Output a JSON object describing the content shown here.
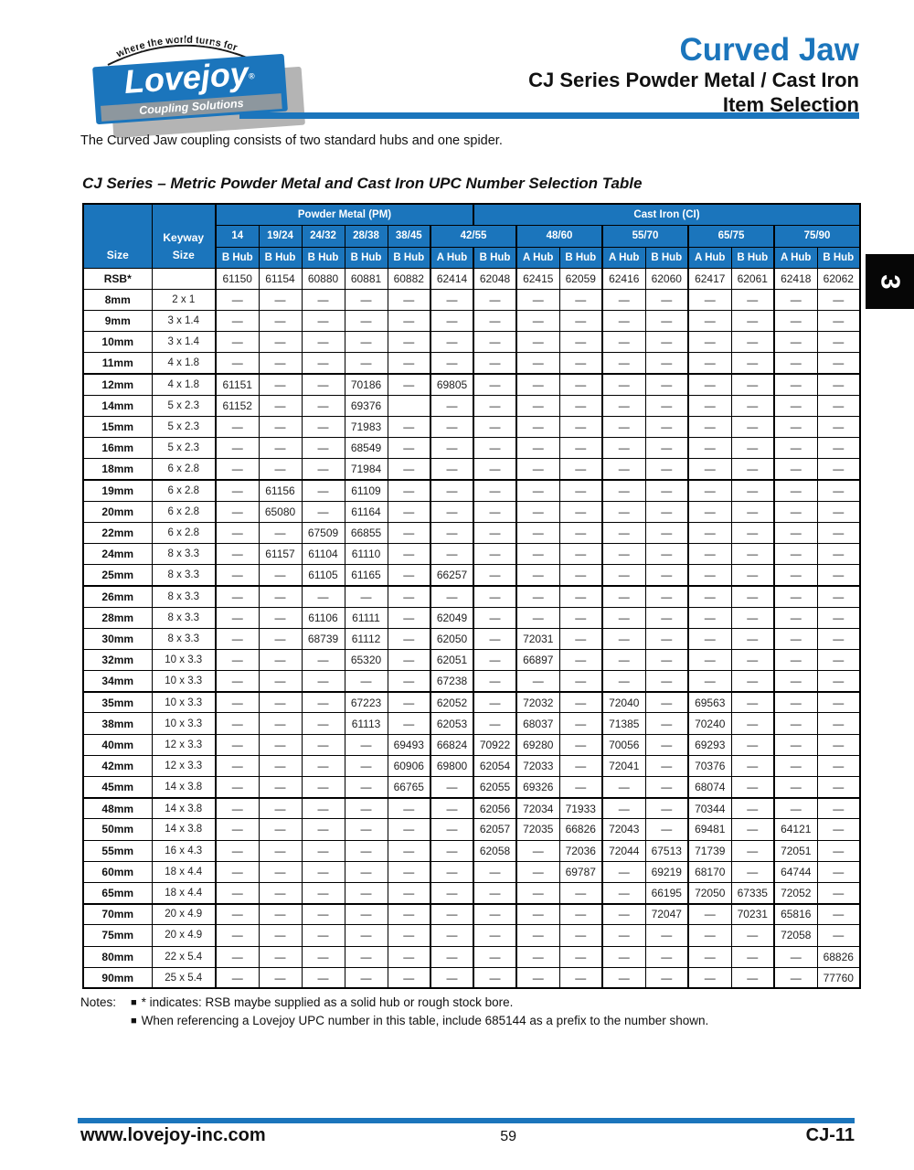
{
  "logo": {
    "tagline": "where the world turns for",
    "brand": "Lovejoy",
    "registered": "®",
    "subtitle": "Coupling Solutions"
  },
  "header": {
    "title": "Curved Jaw",
    "subtitle1": "CJ Series Powder Metal / Cast Iron",
    "subtitle2": "Item Selection"
  },
  "intro": "The Curved Jaw coupling consists of two standard hubs and one spider.",
  "table_title": "CJ Series – Metric Powder Metal and Cast Iron UPC Number Selection Table",
  "side_tab": "3",
  "table": {
    "material_groups": [
      {
        "label": "Powder Metal (PM)",
        "colspan": 6
      },
      {
        "label": "Cast Iron (CI)",
        "colspan": 9
      }
    ],
    "size_groups": [
      {
        "label": "14",
        "colspan": 1
      },
      {
        "label": "19/24",
        "colspan": 1
      },
      {
        "label": "24/32",
        "colspan": 1
      },
      {
        "label": "28/38",
        "colspan": 1
      },
      {
        "label": "38/45",
        "colspan": 1
      },
      {
        "label": "42/55",
        "colspan": 2
      },
      {
        "label": "48/60",
        "colspan": 2
      },
      {
        "label": "55/70",
        "colspan": 2
      },
      {
        "label": "65/75",
        "colspan": 2
      },
      {
        "label": "75/90",
        "colspan": 2
      }
    ],
    "corner": {
      "col1": "Size",
      "col2_line1": "Keyway",
      "col2_line2": "Size"
    },
    "hub_headers": [
      "B Hub",
      "B Hub",
      "B Hub",
      "B Hub",
      "B Hub",
      "A Hub",
      "B Hub",
      "A Hub",
      "B Hub",
      "A Hub",
      "B Hub",
      "A Hub",
      "B Hub",
      "A Hub",
      "B Hub"
    ],
    "rows": [
      {
        "size": "RSB*",
        "keyway": "",
        "values": [
          "61150",
          "61154",
          "60880",
          "60881",
          "60882",
          "62414",
          "62048",
          "62415",
          "62059",
          "62416",
          "62060",
          "62417",
          "62061",
          "62418",
          "62062"
        ]
      },
      {
        "size": "8mm",
        "keyway": "2 x 1",
        "values": [
          "—",
          "—",
          "—",
          "—",
          "—",
          "—",
          "—",
          "—",
          "—",
          "—",
          "—",
          "—",
          "—",
          "—",
          "—"
        ]
      },
      {
        "size": "9mm",
        "keyway": "3 x 1.4",
        "values": [
          "—",
          "—",
          "—",
          "—",
          "—",
          "—",
          "—",
          "—",
          "—",
          "—",
          "—",
          "—",
          "—",
          "—",
          "—"
        ]
      },
      {
        "size": "10mm",
        "keyway": "3 x 1.4",
        "values": [
          "—",
          "—",
          "—",
          "—",
          "—",
          "—",
          "—",
          "—",
          "—",
          "—",
          "—",
          "—",
          "—",
          "—",
          "—"
        ]
      },
      {
        "size": "11mm",
        "keyway": "4 x 1.8",
        "values": [
          "—",
          "—",
          "—",
          "—",
          "—",
          "—",
          "—",
          "—",
          "—",
          "—",
          "—",
          "—",
          "—",
          "—",
          "—"
        ]
      },
      {
        "size": "12mm",
        "keyway": "4 x 1.8",
        "values": [
          "61151",
          "—",
          "—",
          "70186",
          "—",
          "69805",
          "—",
          "—",
          "—",
          "—",
          "—",
          "—",
          "—",
          "—",
          "—"
        ]
      },
      {
        "size": "14mm",
        "keyway": "5 x 2.3",
        "values": [
          "61152",
          "—",
          "—",
          "69376",
          "",
          "—",
          "—",
          "—",
          "—",
          "—",
          "—",
          "—",
          "—",
          "—",
          "—"
        ]
      },
      {
        "size": "15mm",
        "keyway": "5 x 2.3",
        "values": [
          "—",
          "—",
          "—",
          "71983",
          "—",
          "—",
          "—",
          "—",
          "—",
          "—",
          "—",
          "—",
          "—",
          "—",
          "—"
        ]
      },
      {
        "size": "16mm",
        "keyway": "5 x 2.3",
        "values": [
          "—",
          "—",
          "—",
          "68549",
          "—",
          "—",
          "—",
          "—",
          "—",
          "—",
          "—",
          "—",
          "—",
          "—",
          "—"
        ]
      },
      {
        "size": "18mm",
        "keyway": "6 x 2.8",
        "values": [
          "—",
          "—",
          "—",
          "71984",
          "—",
          "—",
          "—",
          "—",
          "—",
          "—",
          "—",
          "—",
          "—",
          "—",
          "—"
        ]
      },
      {
        "size": "19mm",
        "keyway": "6 x 2.8",
        "values": [
          "—",
          "61156",
          "—",
          "61109",
          "—",
          "—",
          "—",
          "—",
          "—",
          "—",
          "—",
          "—",
          "—",
          "—",
          "—"
        ]
      },
      {
        "size": "20mm",
        "keyway": "6 x 2.8",
        "values": [
          "—",
          "65080",
          "—",
          "61164",
          "—",
          "—",
          "—",
          "—",
          "—",
          "—",
          "—",
          "—",
          "—",
          "—",
          "—"
        ]
      },
      {
        "size": "22mm",
        "keyway": "6 x 2.8",
        "values": [
          "—",
          "—",
          "67509",
          "66855",
          "—",
          "—",
          "—",
          "—",
          "—",
          "—",
          "—",
          "—",
          "—",
          "—",
          "—"
        ]
      },
      {
        "size": "24mm",
        "keyway": "8 x 3.3",
        "values": [
          "—",
          "61157",
          "61104",
          "61110",
          "—",
          "—",
          "—",
          "—",
          "—",
          "—",
          "—",
          "—",
          "—",
          "—",
          "—"
        ]
      },
      {
        "size": "25mm",
        "keyway": "8 x 3.3",
        "values": [
          "—",
          "—",
          "61105",
          "61165",
          "—",
          "66257",
          "—",
          "—",
          "—",
          "—",
          "—",
          "—",
          "—",
          "—",
          "—"
        ]
      },
      {
        "size": "26mm",
        "keyway": "8 x 3.3",
        "values": [
          "—",
          "—",
          "—",
          "—",
          "—",
          "—",
          "—",
          "—",
          "—",
          "—",
          "—",
          "—",
          "—",
          "—",
          "—"
        ]
      },
      {
        "size": "28mm",
        "keyway": "8 x 3.3",
        "values": [
          "—",
          "—",
          "61106",
          "61111",
          "—",
          "62049",
          "—",
          "—",
          "—",
          "—",
          "—",
          "—",
          "—",
          "—",
          "—"
        ]
      },
      {
        "size": "30mm",
        "keyway": "8 x 3.3",
        "values": [
          "—",
          "—",
          "68739",
          "61112",
          "—",
          "62050",
          "—",
          "72031",
          "—",
          "—",
          "—",
          "—",
          "—",
          "—",
          "—"
        ]
      },
      {
        "size": "32mm",
        "keyway": "10 x 3.3",
        "values": [
          "—",
          "—",
          "—",
          "65320",
          "—",
          "62051",
          "—",
          "66897",
          "—",
          "—",
          "—",
          "—",
          "—",
          "—",
          "—"
        ]
      },
      {
        "size": "34mm",
        "keyway": "10 x 3.3",
        "values": [
          "—",
          "—",
          "—",
          "—",
          "—",
          "67238",
          "—",
          "—",
          "—",
          "—",
          "—",
          "—",
          "—",
          "—",
          "—"
        ]
      },
      {
        "size": "35mm",
        "keyway": "10 x 3.3",
        "values": [
          "—",
          "—",
          "—",
          "67223",
          "—",
          "62052",
          "—",
          "72032",
          "—",
          "72040",
          "—",
          "69563",
          "—",
          "—",
          "—"
        ]
      },
      {
        "size": "38mm",
        "keyway": "10 x 3.3",
        "values": [
          "—",
          "—",
          "—",
          "61113",
          "—",
          "62053",
          "—",
          "68037",
          "—",
          "71385",
          "—",
          "70240",
          "—",
          "—",
          "—"
        ]
      },
      {
        "size": "40mm",
        "keyway": "12 x 3.3",
        "values": [
          "—",
          "—",
          "—",
          "—",
          "69493",
          "66824",
          "70922",
          "69280",
          "—",
          "70056",
          "—",
          "69293",
          "—",
          "—",
          "—"
        ]
      },
      {
        "size": "42mm",
        "keyway": "12 x 3.3",
        "values": [
          "—",
          "—",
          "—",
          "—",
          "60906",
          "69800",
          "62054",
          "72033",
          "—",
          "72041",
          "—",
          "70376",
          "—",
          "—",
          "—"
        ]
      },
      {
        "size": "45mm",
        "keyway": "14 x 3.8",
        "values": [
          "—",
          "—",
          "—",
          "—",
          "66765",
          "—",
          "62055",
          "69326",
          "—",
          "—",
          "—",
          "68074",
          "—",
          "—",
          "—"
        ]
      },
      {
        "size": "48mm",
        "keyway": "14 x 3.8",
        "values": [
          "—",
          "—",
          "—",
          "—",
          "—",
          "—",
          "62056",
          "72034",
          "71933",
          "—",
          "—",
          "70344",
          "—",
          "—",
          "—"
        ]
      },
      {
        "size": "50mm",
        "keyway": "14 x 3.8",
        "values": [
          "—",
          "—",
          "—",
          "—",
          "—",
          "—",
          "62057",
          "72035",
          "66826",
          "72043",
          "—",
          "69481",
          "—",
          "64121",
          "—"
        ]
      },
      {
        "size": "55mm",
        "keyway": "16 x 4.3",
        "values": [
          "—",
          "—",
          "—",
          "—",
          "—",
          "—",
          "62058",
          "—",
          "72036",
          "72044",
          "67513",
          "71739",
          "—",
          "72051",
          "—"
        ]
      },
      {
        "size": "60mm",
        "keyway": "18 x 4.4",
        "values": [
          "—",
          "—",
          "—",
          "—",
          "—",
          "—",
          "—",
          "—",
          "69787",
          "—",
          "69219",
          "68170",
          "—",
          "64744",
          "—"
        ]
      },
      {
        "size": "65mm",
        "keyway": "18 x 4.4",
        "values": [
          "—",
          "—",
          "—",
          "—",
          "—",
          "—",
          "—",
          "—",
          "—",
          "—",
          "66195",
          "72050",
          "67335",
          "72052",
          "—"
        ]
      },
      {
        "size": "70mm",
        "keyway": "20 x 4.9",
        "values": [
          "—",
          "—",
          "—",
          "—",
          "—",
          "—",
          "—",
          "—",
          "—",
          "—",
          "72047",
          "—",
          "70231",
          "65816",
          "—"
        ]
      },
      {
        "size": "75mm",
        "keyway": "20 x 4.9",
        "values": [
          "—",
          "—",
          "—",
          "—",
          "—",
          "—",
          "—",
          "—",
          "—",
          "—",
          "—",
          "—",
          "—",
          "72058",
          "—"
        ]
      },
      {
        "size": "80mm",
        "keyway": "22 x 5.4",
        "values": [
          "—",
          "—",
          "—",
          "—",
          "—",
          "—",
          "—",
          "—",
          "—",
          "—",
          "—",
          "—",
          "—",
          "—",
          "68826"
        ]
      },
      {
        "size": "90mm",
        "keyway": "25 x 5.4",
        "values": [
          "—",
          "—",
          "—",
          "—",
          "—",
          "—",
          "—",
          "—",
          "—",
          "—",
          "—",
          "—",
          "—",
          "—",
          "77760"
        ]
      }
    ]
  },
  "notes": {
    "label": "Notes:",
    "bullet": "■",
    "items": [
      "* indicates: RSB maybe supplied as a solid hub or rough stock bore.",
      "When referencing a Lovejoy UPC number in this table, include 685144 as a prefix to the number shown."
    ]
  },
  "footer": {
    "website": "www.lovejoy-inc.com",
    "page_number": "59",
    "doc_code": "CJ-11"
  },
  "colors": {
    "brand_blue": "#1b75bc",
    "tab_black": "#060606"
  }
}
